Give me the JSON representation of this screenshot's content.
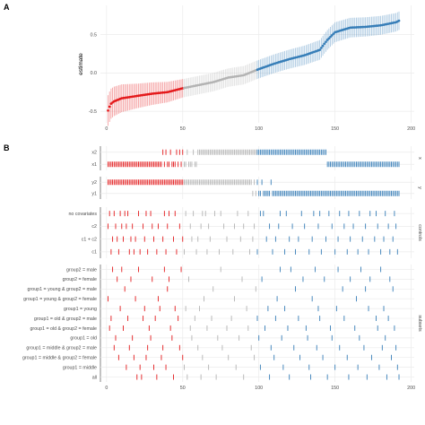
{
  "panel_letters": {
    "a": "A",
    "b": "B"
  },
  "colors": {
    "red": "#e41a1c",
    "grey": "#b3b3b3",
    "blue": "#377eb8",
    "grid": "#ebebeb"
  },
  "chart_data": [
    {
      "type": "line",
      "title": "",
      "xlabel": "",
      "ylabel": "estimate",
      "xlim": [
        -4,
        202
      ],
      "ylim": [
        -0.65,
        0.88
      ],
      "x_ticks": [
        "0",
        "50",
        "100",
        "150",
        "200"
      ],
      "y_ticks": [
        "-0.5",
        "0.0",
        "0.5"
      ],
      "x_tick_values": [
        0,
        50,
        100,
        150,
        200
      ],
      "y_tick_values": [
        -0.5,
        0.0,
        0.5
      ],
      "grid": true,
      "n_specifications": 192,
      "significance_groups": {
        "negative": [
          1,
          50
        ],
        "nonsignificant": [
          51,
          98
        ],
        "positive": [
          99,
          192
        ]
      },
      "estimate_knots": {
        "x": [
          1,
          2,
          3,
          5,
          10,
          20,
          30,
          40,
          50,
          60,
          70,
          80,
          90,
          100,
          110,
          120,
          130,
          140,
          143,
          145,
          150,
          160,
          170,
          180,
          190,
          192
        ],
        "y": [
          -0.49,
          -0.44,
          -0.4,
          -0.37,
          -0.33,
          -0.3,
          -0.27,
          -0.25,
          -0.2,
          -0.16,
          -0.12,
          -0.06,
          -0.03,
          0.05,
          0.12,
          0.18,
          0.23,
          0.3,
          0.38,
          0.43,
          0.53,
          0.59,
          0.6,
          0.62,
          0.66,
          0.68
        ]
      },
      "interval_halfwidth": {
        "x": [
          1,
          20,
          50,
          100,
          150,
          192
        ],
        "y": [
          0.2,
          0.16,
          0.12,
          0.12,
          0.13,
          0.12
        ]
      }
    },
    {
      "type": "scatter",
      "title": "",
      "xlim": [
        -4,
        202
      ],
      "x_ticks": [
        "0",
        "50",
        "100",
        "150",
        "200"
      ],
      "x_tick_values": [
        0,
        50,
        100,
        150,
        200
      ],
      "grid": true,
      "facets": [
        {
          "name": "x",
          "rows": [
            "x2",
            "x1"
          ]
        },
        {
          "name": "y",
          "rows": [
            "y2",
            "y1"
          ]
        },
        {
          "name": "controls",
          "rows": [
            "no covariates",
            "c2",
            "c1 + c2",
            "c1"
          ]
        },
        {
          "name": "subsets",
          "rows": [
            "group2 = male",
            "group2 = female",
            "group1 = young & group2 = male",
            "group1 = young & group2 = female",
            "group1 = young",
            "group1 = old & group2 = male",
            "group1 = old & group2 = female",
            "group1 = old",
            "group1 = middle & group2 = male",
            "group1 = middle & group2 = female",
            "group1 = middle",
            "all"
          ]
        }
      ],
      "specifications": {
        "x2": [
          37,
          39,
          42,
          46,
          48,
          50,
          53,
          57,
          60,
          61,
          62,
          63,
          64,
          65,
          66,
          67,
          68,
          69,
          70,
          71,
          72,
          73,
          74,
          75,
          76,
          77,
          78,
          79,
          80,
          81,
          82,
          83,
          84,
          85,
          86,
          87,
          88,
          89,
          90,
          91,
          92,
          93,
          94,
          95,
          96,
          97,
          98,
          99,
          100,
          101,
          102,
          103,
          104,
          105,
          106,
          107,
          108,
          109,
          110,
          111,
          112,
          113,
          114,
          115,
          116,
          117,
          118,
          119,
          120,
          121,
          122,
          123,
          124,
          125,
          126,
          127,
          128,
          129,
          130,
          131,
          132,
          133,
          134,
          135,
          136,
          137,
          138,
          139,
          140,
          141,
          142,
          143,
          144
        ],
        "x1": [
          1,
          2,
          3,
          4,
          5,
          6,
          7,
          8,
          9,
          10,
          11,
          12,
          13,
          14,
          15,
          16,
          17,
          18,
          19,
          20,
          21,
          22,
          23,
          24,
          25,
          26,
          27,
          28,
          29,
          30,
          31,
          32,
          33,
          34,
          35,
          36,
          38,
          40,
          41,
          43,
          44,
          45,
          47,
          49,
          51,
          52,
          54,
          55,
          56,
          58,
          59,
          145,
          146,
          147,
          148,
          149,
          150,
          151,
          152,
          153,
          154,
          155,
          156,
          157,
          158,
          159,
          160,
          161,
          162,
          163,
          164,
          165,
          166,
          167,
          168,
          169,
          170,
          171,
          172,
          173,
          174,
          175,
          176,
          177,
          178,
          179,
          180,
          181,
          182,
          183,
          184,
          185,
          186,
          187,
          188,
          189,
          190,
          191,
          192
        ],
        "y2": [
          1,
          2,
          3,
          4,
          5,
          6,
          7,
          8,
          9,
          10,
          11,
          12,
          13,
          14,
          15,
          16,
          17,
          18,
          19,
          20,
          21,
          22,
          23,
          24,
          25,
          26,
          27,
          28,
          29,
          30,
          31,
          32,
          33,
          34,
          35,
          36,
          37,
          38,
          39,
          40,
          41,
          42,
          43,
          44,
          45,
          46,
          47,
          48,
          49,
          50,
          51,
          52,
          53,
          54,
          55,
          56,
          57,
          58,
          59,
          60,
          61,
          62,
          63,
          64,
          65,
          66,
          67,
          68,
          69,
          70,
          71,
          72,
          73,
          74,
          75,
          76,
          77,
          78,
          79,
          80,
          81,
          82,
          83,
          84,
          85,
          86,
          87,
          88,
          89,
          90,
          91,
          92,
          93,
          94,
          95,
          97,
          99,
          102,
          108
        ],
        "y1": [
          96,
          98,
          100,
          101,
          103,
          104,
          105,
          106,
          107,
          109,
          110,
          111,
          112,
          113,
          114,
          115,
          116,
          117,
          118,
          119,
          120,
          121,
          122,
          123,
          124,
          125,
          126,
          127,
          128,
          129,
          130,
          131,
          132,
          133,
          134,
          135,
          136,
          137,
          138,
          139,
          140,
          141,
          142,
          143,
          144,
          145,
          146,
          147,
          148,
          149,
          150,
          151,
          152,
          153,
          154,
          155,
          156,
          157,
          158,
          159,
          160,
          161,
          162,
          163,
          164,
          165,
          166,
          167,
          168,
          169,
          170,
          171,
          172,
          173,
          174,
          175,
          176,
          177,
          178,
          179,
          180,
          181,
          182,
          183,
          184,
          185,
          186,
          187,
          188,
          189,
          190,
          191,
          192
        ],
        "no covariates": [
          2,
          5,
          9,
          12,
          14,
          21,
          26,
          29,
          38,
          41,
          45,
          52,
          57,
          63,
          65,
          71,
          75,
          86,
          93,
          101,
          103,
          114,
          118,
          128,
          136,
          140,
          146,
          153,
          159,
          166,
          173,
          177,
          183,
          189
        ],
        "c2": [
          1,
          6,
          10,
          13,
          17,
          24,
          30,
          34,
          40,
          48,
          55,
          62,
          67,
          77,
          84,
          90,
          97,
          107,
          113,
          122,
          130,
          139,
          148,
          156,
          162,
          170,
          178,
          185,
          190
        ],
        "c1 + c2": [
          4,
          7,
          11,
          16,
          19,
          25,
          31,
          37,
          44,
          50,
          56,
          60,
          68,
          79,
          88,
          96,
          105,
          111,
          120,
          126,
          135,
          144,
          152,
          160,
          168,
          176,
          182,
          188
        ],
        "c1": [
          3,
          8,
          15,
          18,
          22,
          27,
          33,
          39,
          46,
          51,
          59,
          66,
          74,
          83,
          94,
          99,
          109,
          117,
          124,
          133,
          141,
          150,
          158,
          165,
          172,
          180,
          186,
          191
        ],
        "group2 = male": [
          4,
          10,
          21,
          38,
          49,
          75,
          114,
          121,
          137,
          152,
          167,
          180
        ],
        "group2 = female": [
          7,
          16,
          30,
          41,
          54,
          89,
          102,
          129,
          143,
          160,
          173,
          186
        ],
        "group1 = young & group2 = male": [
          12,
          40,
          70,
          98,
          124,
          155,
          170,
          188
        ],
        "group1 = young & group2 = female": [
          1,
          19,
          34,
          64,
          84,
          112,
          135,
          164
        ],
        "group1 = young": [
          9,
          25,
          35,
          45,
          52,
          61,
          92,
          106,
          117,
          139,
          151,
          172,
          182
        ],
        "group1 = old & group2 = male": [
          3,
          14,
          24,
          32,
          47,
          58,
          69,
          82,
          99,
          111,
          126,
          140,
          156,
          177,
          185
        ],
        "group1 = old & group2 = female": [
          2,
          11,
          28,
          42,
          55,
          66,
          79,
          93,
          104,
          119,
          131,
          147,
          163,
          178,
          189
        ],
        "group1 = old": [
          6,
          17,
          29,
          43,
          56,
          73,
          87,
          100,
          115,
          132,
          148,
          166,
          183
        ],
        "group1 = middle & group2 = male": [
          5,
          15,
          27,
          37,
          48,
          60,
          76,
          95,
          108,
          123,
          138,
          153,
          169,
          181,
          190
        ],
        "group1 = middle & group2 = female": [
          8,
          18,
          26,
          36,
          50,
          63,
          80,
          97,
          110,
          127,
          142,
          158,
          174,
          187
        ],
        "group1 = middle": [
          13,
          22,
          31,
          39,
          51,
          67,
          85,
          101,
          116,
          133,
          150,
          165,
          179,
          191
        ],
        "all": [
          20,
          23,
          33,
          44,
          53,
          62,
          72,
          90,
          107,
          120,
          134,
          145,
          159,
          171,
          184,
          192
        ]
      }
    }
  ]
}
